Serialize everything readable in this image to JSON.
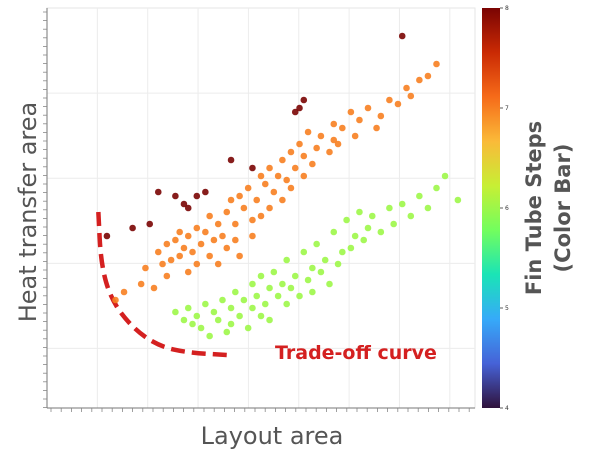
{
  "chart_data": {
    "type": "scatter",
    "xlabel": "Layout area",
    "ylabel": "Heat transfer area",
    "colorbar": {
      "label_line1": "Fin Tube Steps",
      "label_line2": "(Color Bar)",
      "range": [
        4,
        8
      ],
      "ticks": [
        "4",
        "5",
        "6",
        "7",
        "8"
      ],
      "colormap": [
        "#30123b",
        "#4662d7",
        "#36aaf9",
        "#1ae4b6",
        "#72fe5e",
        "#c7ef34",
        "#faba39",
        "#f66b19",
        "#ca2a04",
        "#7a0403"
      ]
    },
    "grid": true,
    "xlim": [
      0,
      100
    ],
    "ylim": [
      0,
      100
    ],
    "annotation": {
      "text": "Trade-off curve",
      "color": "#d42020",
      "curve": [
        [
          12,
          49
        ],
        [
          12.6,
          36
        ],
        [
          15,
          27
        ],
        [
          20,
          20
        ],
        [
          26,
          15.5
        ],
        [
          33,
          13.8
        ],
        [
          43,
          13.2
        ]
      ]
    },
    "series": [
      {
        "steps": 8,
        "x": [
          14,
          20,
          24,
          26,
          30,
          32,
          33,
          35,
          37,
          43,
          48,
          58,
          59,
          60,
          83
        ],
        "y": [
          43,
          45,
          46,
          54,
          53,
          51,
          50,
          53,
          54,
          62,
          60,
          74,
          75,
          77,
          93
        ]
      },
      {
        "steps": 7,
        "x": [
          16,
          18,
          22,
          23,
          25,
          26,
          27,
          28,
          28,
          29,
          30,
          31,
          31,
          32,
          33,
          33,
          34,
          35,
          35,
          36,
          37,
          38,
          38,
          39,
          40,
          40,
          41,
          42,
          42,
          43,
          44,
          44,
          45,
          45,
          46,
          47,
          48,
          48,
          49,
          50,
          50,
          51,
          52,
          52,
          53,
          54,
          55,
          55,
          56,
          57,
          57,
          58,
          59,
          60,
          60,
          61,
          62,
          63,
          64,
          66,
          67,
          67,
          68,
          69,
          71,
          72,
          73,
          75,
          77,
          78,
          80,
          82,
          84,
          85,
          87,
          89,
          91
        ],
        "y": [
          27,
          29,
          31,
          35,
          30,
          39,
          36,
          41,
          33,
          37,
          42,
          38,
          44,
          40,
          43,
          34,
          39,
          45,
          36,
          41,
          44,
          38,
          48,
          42,
          46,
          36,
          43,
          49,
          40,
          52,
          46,
          42,
          53,
          38,
          50,
          55,
          47,
          43,
          52,
          58,
          48,
          56,
          50,
          60,
          54,
          58,
          52,
          62,
          57,
          64,
          55,
          60,
          66,
          58,
          63,
          69,
          61,
          65,
          68,
          64,
          67,
          71,
          66,
          70,
          74,
          68,
          72,
          75,
          70,
          73,
          77,
          76,
          80,
          78,
          82,
          83,
          86
        ]
      },
      {
        "steps": 6,
        "x": [
          30,
          32,
          33,
          34,
          35,
          36,
          37,
          38,
          39,
          40,
          41,
          42,
          43,
          43,
          44,
          45,
          46,
          47,
          48,
          48,
          49,
          50,
          50,
          51,
          52,
          52,
          53,
          54,
          55,
          56,
          56,
          57,
          58,
          59,
          60,
          61,
          62,
          62,
          63,
          64,
          65,
          66,
          67,
          68,
          69,
          70,
          71,
          72,
          73,
          74,
          75,
          76,
          78,
          80,
          81,
          83,
          85,
          87,
          89,
          91,
          93,
          96
        ],
        "y": [
          24,
          22,
          25,
          21,
          23,
          20,
          26,
          18,
          24,
          22,
          27,
          19,
          25,
          21,
          29,
          23,
          27,
          20,
          31,
          25,
          28,
          23,
          33,
          26,
          30,
          22,
          34,
          28,
          31,
          26,
          37,
          30,
          33,
          28,
          39,
          32,
          35,
          29,
          41,
          34,
          37,
          31,
          44,
          36,
          39,
          47,
          40,
          43,
          49,
          42,
          45,
          48,
          44,
          50,
          46,
          51,
          48,
          53,
          50,
          55,
          58,
          52
        ]
      }
    ]
  }
}
